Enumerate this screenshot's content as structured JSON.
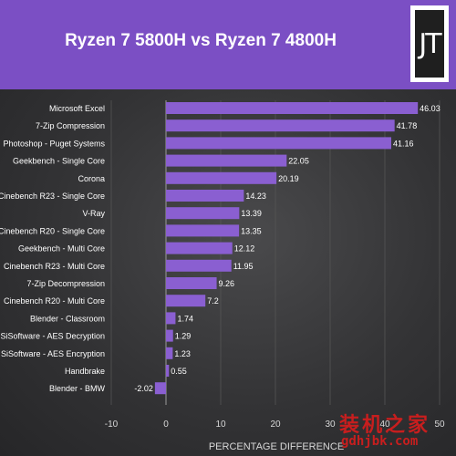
{
  "header": {
    "title": "Ryzen 7 5800H vs Ryzen 7 4800H",
    "logo_text": "JT"
  },
  "watermark": {
    "text_cn": "装机之家",
    "url": "gdhjbk.com"
  },
  "colors": {
    "bar": "#8a5fd1",
    "header": "#7b4fc4",
    "background": "#2b2b2d",
    "grid": "#555555",
    "text": "#ffffff"
  },
  "chart_data": {
    "type": "bar",
    "orientation": "horizontal",
    "title": "Ryzen 7 5800H vs Ryzen 7 4800H",
    "xlabel": "PERCENTAGE DIFFERENCE",
    "ylabel": "",
    "xlim": [
      -10,
      50
    ],
    "xticks": [
      -10,
      0,
      10,
      20,
      30,
      40,
      50
    ],
    "grid": true,
    "legend": "none",
    "categories": [
      "Microsoft Excel",
      "7-Zip Compression",
      "Photoshop - Puget Systems",
      "Geekbench - Single Core",
      "Corona",
      "Cinebench R23 - Single Core",
      "V-Ray",
      "Cinebench R20 - Single Core",
      "Geekbench - Multi Core",
      "Cinebench R23 - Multi Core",
      "7-Zip Decompression",
      "Cinebench R20 - Multi Core",
      "Blender - Classroom",
      "SiSoftware - AES Decryption",
      "SiSoftware - AES Encryption",
      "Handbrake",
      "Blender - BMW"
    ],
    "values": [
      46.03,
      41.78,
      41.16,
      22.05,
      20.19,
      14.23,
      13.39,
      13.35,
      12.12,
      11.95,
      9.26,
      7.2,
      1.74,
      1.29,
      1.23,
      0.55,
      -2.02
    ],
    "value_labels": [
      "46.03",
      "41.78",
      "41.16",
      "22.05",
      "20.19",
      "14.23",
      "13.39",
      "13.35",
      "12.12",
      "11.95",
      "9.26",
      "7.2",
      "1.74",
      "1.29",
      "1.23",
      "0.55",
      "-2.02"
    ]
  }
}
